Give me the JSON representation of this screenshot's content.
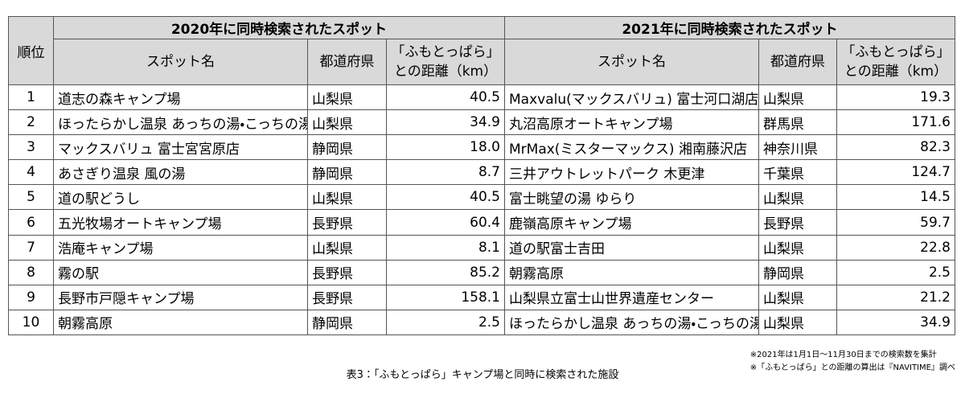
{
  "table": {
    "rank_header": "順位",
    "groups": [
      {
        "title": "2020年に同時検索されたスポット",
        "columns": {
          "name": "スポット名",
          "prefecture": "都道府県",
          "distance": [
            "「ふもとっぱら」",
            "との距離（km）"
          ]
        }
      },
      {
        "title": "2021年に同時検索されたスポット",
        "columns": {
          "name": "スポット名",
          "prefecture": "都道府県",
          "distance": [
            "「ふもとっぱら」",
            "との距離（km）"
          ]
        }
      }
    ],
    "rows": [
      [
        "1",
        "道志の森キャンプ場",
        "山梨県",
        "40.5",
        "Maxvalu(マックスバリュ) 富士河口湖店",
        "山梨県",
        "19.3"
      ],
      [
        "2",
        "ほったらかし温泉 あっちの湯・こっちの湯",
        "山梨県",
        "34.9",
        "丸沼高原オートキャンプ場",
        "群馬県",
        "171.6"
      ],
      [
        "3",
        "マックスバリュ 富士宮宮原店",
        "静岡県",
        "18.0",
        "MrMax(ミスターマックス) 湘南藤沢店",
        "神奈川県",
        "82.3"
      ],
      [
        "4",
        "あさぎり温泉 風の湯",
        "静岡県",
        "8.7",
        "三井アウトレットパーク 木更津",
        "千葉県",
        "124.7"
      ],
      [
        "5",
        "道の駅どうし",
        "山梨県",
        "40.5",
        "富士眺望の湯 ゆらり",
        "山梨県",
        "14.5"
      ],
      [
        "6",
        "五光牧場オートキャンプ場",
        "長野県",
        "60.4",
        "鹿嶺高原キャンプ場",
        "長野県",
        "59.7"
      ],
      [
        "7",
        "浩庵キャンプ場",
        "山梨県",
        "8.1",
        "道の駅富士吉田",
        "山梨県",
        "22.8"
      ],
      [
        "8",
        "霧の駅",
        "長野県",
        "85.2",
        "朝霧高原",
        "静岡県",
        "2.5"
      ],
      [
        "9",
        "長野市戸隠キャンプ場",
        "長野県",
        "158.1",
        "山梨県立富士山世界遺産センター",
        "山梨県",
        "21.2"
      ],
      [
        "10",
        "朝霧高原",
        "静岡県",
        "2.5",
        "ほったらかし温泉 あっちの湯・こっちの湯",
        "山梨県",
        "34.9"
      ]
    ]
  },
  "notes": [
    "※2021年は1月1日～11月30日までの検索数を集計",
    "※「ふもとっぱら」との距離の算出は『NAVITIME』調べ"
  ],
  "caption": "表3：「ふもとっぱら」キャンプ場と同時に検索された施設"
}
